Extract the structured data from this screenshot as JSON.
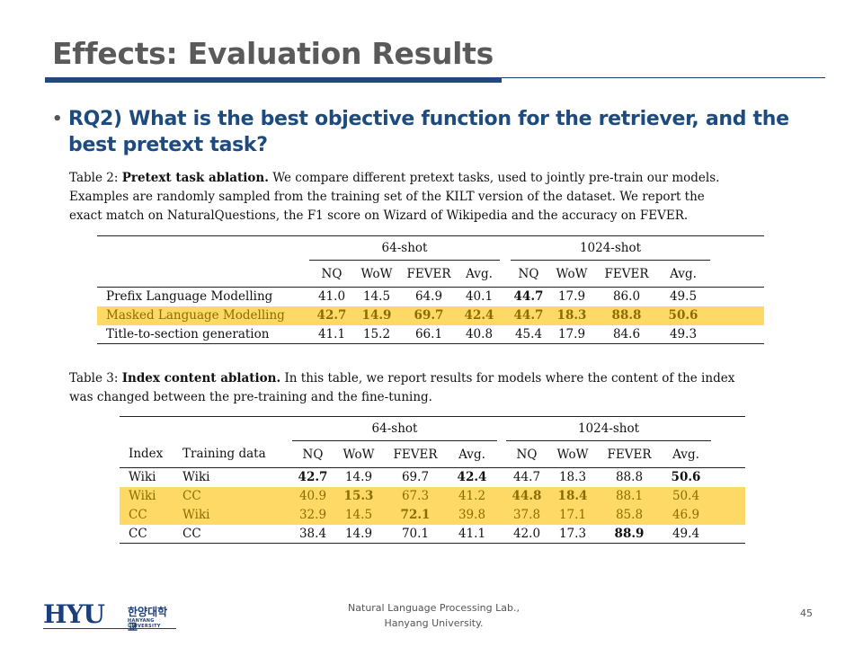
{
  "slide": {
    "title": "Effects: Evaluation Results",
    "bullet": "RQ2) What is the best objective function for the retriever, and the best pretext task?",
    "page_number": "45"
  },
  "table2": {
    "label": "Table 2:",
    "title": "Pretext task ablation.",
    "caption_line1": " We compare different pretext tasks, used to jointly pre-train our models.",
    "caption_line2": "Examples are randomly sampled from the training set of the KILT version of the dataset. We report the",
    "caption_line3": "exact match on NaturalQuestions, the F1 score on Wizard of Wikipedia and the accuracy on FEVER.",
    "group1": "64-shot",
    "group2": "1024-shot",
    "cols": [
      "NQ",
      "WoW",
      "FEVER",
      "Avg.",
      "NQ",
      "WoW",
      "FEVER",
      "Avg."
    ],
    "rows": [
      {
        "name": "Prefix Language Modelling",
        "values": [
          "41.0",
          "14.5",
          "64.9",
          "40.1",
          "44.7",
          "17.9",
          "86.0",
          "49.5"
        ]
      },
      {
        "name": "Masked Language Modelling",
        "values": [
          "42.7",
          "14.9",
          "69.7",
          "42.4",
          "44.7",
          "18.3",
          "88.8",
          "50.6"
        ]
      },
      {
        "name": "Title-to-section generation",
        "values": [
          "41.1",
          "15.2",
          "66.1",
          "40.8",
          "45.4",
          "17.9",
          "84.6",
          "49.3"
        ]
      }
    ]
  },
  "table3": {
    "label": "Table 3:",
    "title": "Index content ablation.",
    "caption_line1": " In this table, we report results for models where the content of the index",
    "caption_line2": "was changed between the pre-training and the fine-tuning.",
    "group1": "64-shot",
    "group2": "1024-shot",
    "col_index": "Index",
    "col_training": "Training data",
    "cols": [
      "NQ",
      "WoW",
      "FEVER",
      "Avg.",
      "NQ",
      "WoW",
      "FEVER",
      "Avg."
    ],
    "rows": [
      {
        "index": "Wiki",
        "training": "Wiki",
        "values": [
          "42.7",
          "14.9",
          "69.7",
          "42.4",
          "44.7",
          "18.3",
          "88.8",
          "50.6"
        ]
      },
      {
        "index": "Wiki",
        "training": "CC",
        "values": [
          "40.9",
          "15.3",
          "67.3",
          "41.2",
          "44.8",
          "18.4",
          "88.1",
          "50.4"
        ]
      },
      {
        "index": "CC",
        "training": "Wiki",
        "values": [
          "32.9",
          "14.5",
          "72.1",
          "39.8",
          "37.8",
          "17.1",
          "85.8",
          "46.9"
        ]
      },
      {
        "index": "CC",
        "training": "CC",
        "values": [
          "38.4",
          "14.9",
          "70.1",
          "41.1",
          "42.0",
          "17.3",
          "88.9",
          "49.4"
        ]
      }
    ]
  },
  "footer": {
    "logo_text": "HYU",
    "logo_korean": "한양대학교",
    "logo_english": "HANYANG UNIVERSITY",
    "lab_line1": "Natural Language Processing Lab.,",
    "lab_line2": "Hanyang University."
  },
  "colors": {
    "title": "#5a5a5a",
    "accent_blue": "#1e4b7e",
    "highlight": "#ffd966",
    "highlight_text": "#8a6d00"
  }
}
